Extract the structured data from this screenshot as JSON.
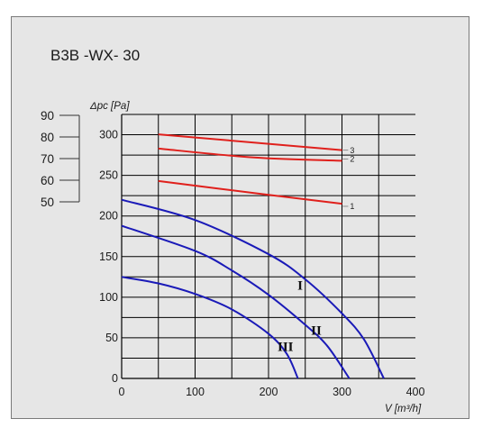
{
  "chart_data": {
    "type": "line",
    "title": "B3B -WX- 30",
    "ylabel": "Δpc [Pa]",
    "xlabel": "V [m³/h]",
    "xlim": [
      0,
      400
    ],
    "ylim": [
      0,
      325
    ],
    "x_ticks": [
      0,
      100,
      200,
      300,
      400
    ],
    "y_ticks": [
      0,
      50,
      100,
      150,
      200,
      250,
      300
    ],
    "x_tick_labels": [
      "0",
      "100",
      "200",
      "300",
      "400"
    ],
    "y_tick_labels": [
      "0",
      "50",
      "100",
      "150",
      "200",
      "250",
      "300"
    ],
    "grid": true,
    "secondary_scale": {
      "ticks": [
        90,
        80,
        70,
        60,
        50
      ],
      "tick_labels": [
        "90",
        "80",
        "70",
        "60",
        "50"
      ]
    },
    "series": [
      {
        "name": "3",
        "color": "#e0201c",
        "x": [
          50,
          300
        ],
        "y": [
          300.5,
          281
        ]
      },
      {
        "name": "2",
        "color": "#e0201c",
        "x": [
          50,
          180,
          300
        ],
        "y": [
          283,
          272,
          268
        ]
      },
      {
        "name": "1",
        "color": "#e0201c",
        "x": [
          50,
          200,
          300
        ],
        "y": [
          243,
          226,
          215
        ]
      },
      {
        "name": "I",
        "color": "#1a1ab8",
        "x": [
          0,
          100,
          200,
          250,
          300,
          330,
          357
        ],
        "y": [
          220,
          195,
          153,
          122,
          80,
          48,
          0
        ]
      },
      {
        "name": "II",
        "color": "#1a1ab8",
        "x": [
          0,
          100,
          150,
          200,
          250,
          280,
          310
        ],
        "y": [
          188,
          157,
          133,
          103,
          66,
          40,
          0
        ]
      },
      {
        "name": "III",
        "color": "#1a1ab8",
        "x": [
          0,
          50,
          100,
          150,
          200,
          225,
          240
        ],
        "y": [
          125,
          117,
          104,
          85,
          55,
          30,
          0
        ]
      }
    ],
    "colors": {
      "fan_curves": "#1a1ab8",
      "resistance_curves": "#e0201c",
      "background": "#e6e6e6"
    }
  }
}
